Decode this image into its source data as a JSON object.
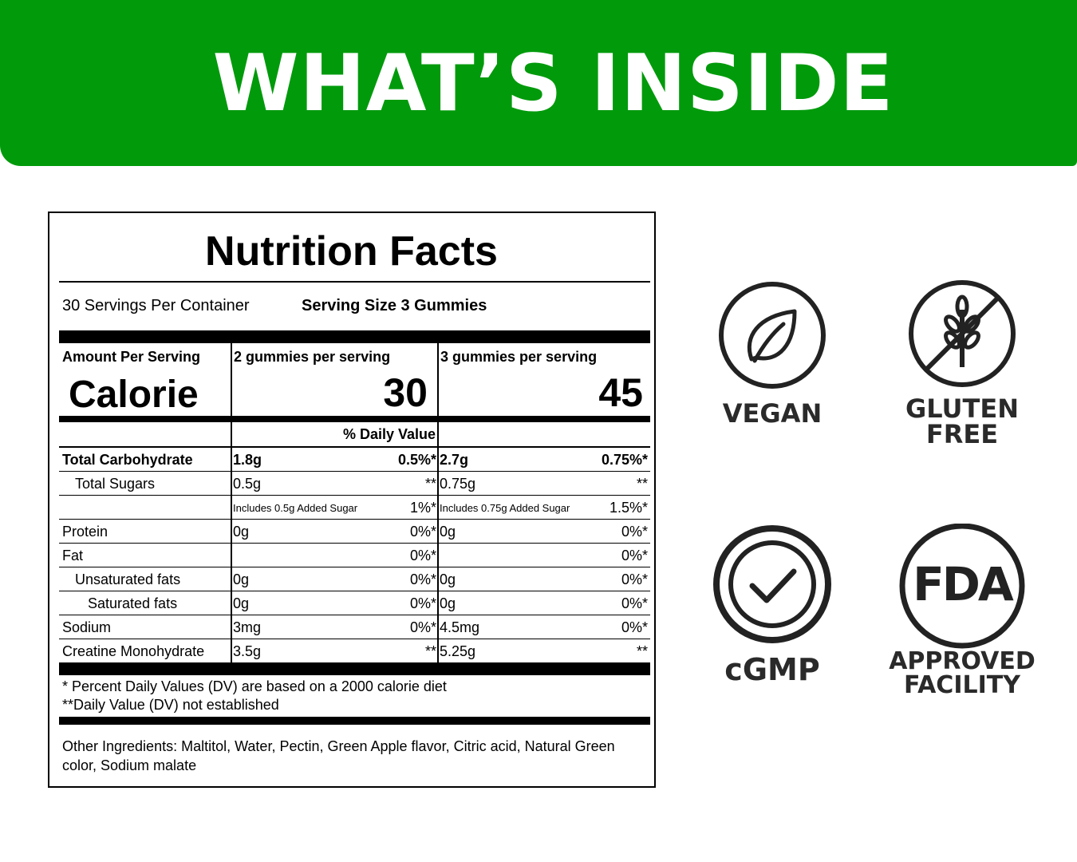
{
  "banner": {
    "title": "WHAT’S INSIDE",
    "color": "#009a0b"
  },
  "label": {
    "title": "Nutrition Facts",
    "servings_per_container": "30 Servings Per Container",
    "serving_size": "Serving Size 3 Gummies",
    "amount_header": "Amount Per Serving",
    "col2_header": "2 gummies per serving",
    "col3_header": "3 gummies per serving",
    "calorie_label": "Calorie",
    "calories_2": "30",
    "calories_3": "45",
    "dv_header": "%  Daily Value",
    "rows": [
      {
        "name": "Total Carbohydrate",
        "a": "1.8g",
        "ap": "0.5%*",
        "b": "2.7g",
        "bp": "0.75%*"
      },
      {
        "name": "Total Sugars",
        "a": "0.5g",
        "ap": "**",
        "b": "0.75g",
        "bp": "**"
      },
      {
        "name": "",
        "a": "Includes 0.5g Added Sugar",
        "ap": "1%*",
        "b": "Includes 0.75g Added Sugar",
        "bp": "1.5%*"
      },
      {
        "name": "Protein",
        "a": "0g",
        "ap": "0%*",
        "b": "0g",
        "bp": "0%*"
      },
      {
        "name": "Fat",
        "a": "",
        "ap": "0%*",
        "b": "",
        "bp": "0%*"
      },
      {
        "name": "Unsaturated fats",
        "a": "0g",
        "ap": "0%*",
        "b": "0g",
        "bp": "0%*"
      },
      {
        "name": "Saturated fats",
        "a": "0g",
        "ap": "0%*",
        "b": "0g",
        "bp": "0%*"
      },
      {
        "name": "Sodium",
        "a": "3mg",
        "ap": "0%*",
        "b": "4.5mg",
        "bp": "0%*"
      },
      {
        "name": "Creatine Monohydrate",
        "a": "3.5g",
        "ap": "**",
        "b": "5.25g",
        "bp": "**"
      }
    ],
    "footnote_1": "* Percent Daily Values (DV) are based on a 2000 calorie diet",
    "footnote_2": "**Daily Value (DV) not established",
    "other_ingredients": "Other Ingredients:  Maltitol, Water, Pectin, Green Apple flavor, Citric acid, Natural Green color, Sodium malate"
  },
  "badges": {
    "vegan": {
      "label": "VEGAN",
      "icon": "leaf-icon"
    },
    "gluten_free": {
      "line1": "GLUTEN",
      "line2": "FREE",
      "icon": "wheat-crossed-icon"
    },
    "cgmp": {
      "label": "cGMP",
      "icon": "check-circle-icon"
    },
    "fda": {
      "icon_text": "FDA",
      "line1": "APPROVED",
      "line2": "FACILITY",
      "icon": "fda-circle-icon"
    }
  }
}
